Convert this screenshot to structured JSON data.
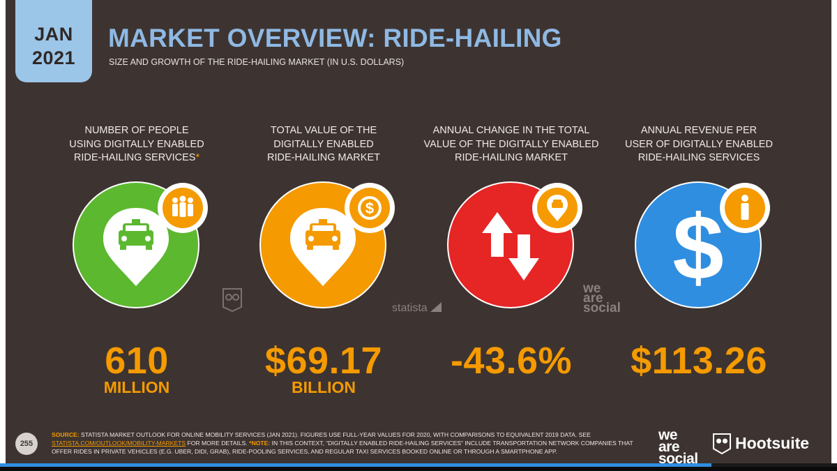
{
  "badge": {
    "month": "JAN",
    "year": "2021"
  },
  "title": "MARKET OVERVIEW: RIDE-HAILING",
  "subtitle": "SIZE AND GROWTH OF THE RIDE-HAILING MARKET (IN U.S. DOLLARS)",
  "colors": {
    "background": "#3d3431",
    "accent_orange": "#f59a00",
    "title_blue": "#8fb9e4",
    "green": "#5cb82f",
    "orange": "#f59a00",
    "red": "#e62525",
    "blue": "#2f8ee0"
  },
  "stats": [
    {
      "label_lines": [
        "NUMBER OF PEOPLE",
        "USING DIGITALLY ENABLED",
        "RIDE-HAILING SERVICES"
      ],
      "asterisk": "*",
      "value": "610",
      "unit": "MILLION",
      "circle_color": "#5cb82f",
      "main_icon": "map-pin-taxi-icon",
      "badge_icon": "people-group-icon"
    },
    {
      "label_lines": [
        "TOTAL VALUE OF THE",
        "DIGITALLY ENABLED",
        "RIDE-HAILING MARKET"
      ],
      "asterisk": "",
      "value": "$69.17",
      "unit": "BILLION",
      "circle_color": "#f59a00",
      "main_icon": "map-pin-taxi-icon",
      "badge_icon": "dollar-seal-icon"
    },
    {
      "label_lines": [
        "ANNUAL CHANGE IN THE TOTAL",
        "VALUE OF THE DIGITALLY ENABLED",
        "RIDE-HAILING MARKET"
      ],
      "asterisk": "",
      "value": "-43.6%",
      "unit": "",
      "circle_color": "#e62525",
      "main_icon": "up-down-arrows-icon",
      "badge_icon": "map-pin-taxi-icon"
    },
    {
      "label_lines": [
        "ANNUAL REVENUE PER",
        "USER OF DIGITALLY ENABLED",
        "RIDE-HAILING SERVICES"
      ],
      "asterisk": "",
      "value": "$113.26",
      "unit": "",
      "circle_color": "#2f8ee0",
      "main_icon": "dollar-sign-icon",
      "badge_icon": "person-icon"
    }
  ],
  "watermarks": {
    "statista": "statista",
    "was": [
      "we",
      "are",
      "social"
    ]
  },
  "footer": {
    "page_number": "255",
    "source_label": "SOURCE:",
    "source_text": "STATISTA MARKET OUTLOOK FOR ONLINE MOBILITY SERVICES (JAN 2021). FIGURES USE FULL-YEAR VALUES FOR 2020, WITH COMPARISONS TO EQUIVALENT 2019 DATA.",
    "see_text": "SEE",
    "link_text": "STATISTA.COM/OUTLOOK/MOBILITY-MARKETS",
    "details_text": "FOR MORE DETAILS.",
    "note_label": "*NOTE:",
    "note_text": "IN THIS CONTEXT, “DIGITALLY ENABLED RIDE-HAILING SERVICES” INCLUDE TRANSPORTATION NETWORK COMPANIES THAT OFFER RIDES IN PRIVATE VEHICLES (E.G. UBER, DIDI, GRAB), RIDE-POOLING SERVICES, AND REGULAR TAXI SERVICES BOOKED ONLINE OR THROUGH A SMARTPHONE APP."
  },
  "logos": {
    "was": [
      "we",
      "are",
      "social"
    ],
    "hootsuite": "Hootsuite"
  },
  "progress": {
    "fraction": 0.85
  }
}
